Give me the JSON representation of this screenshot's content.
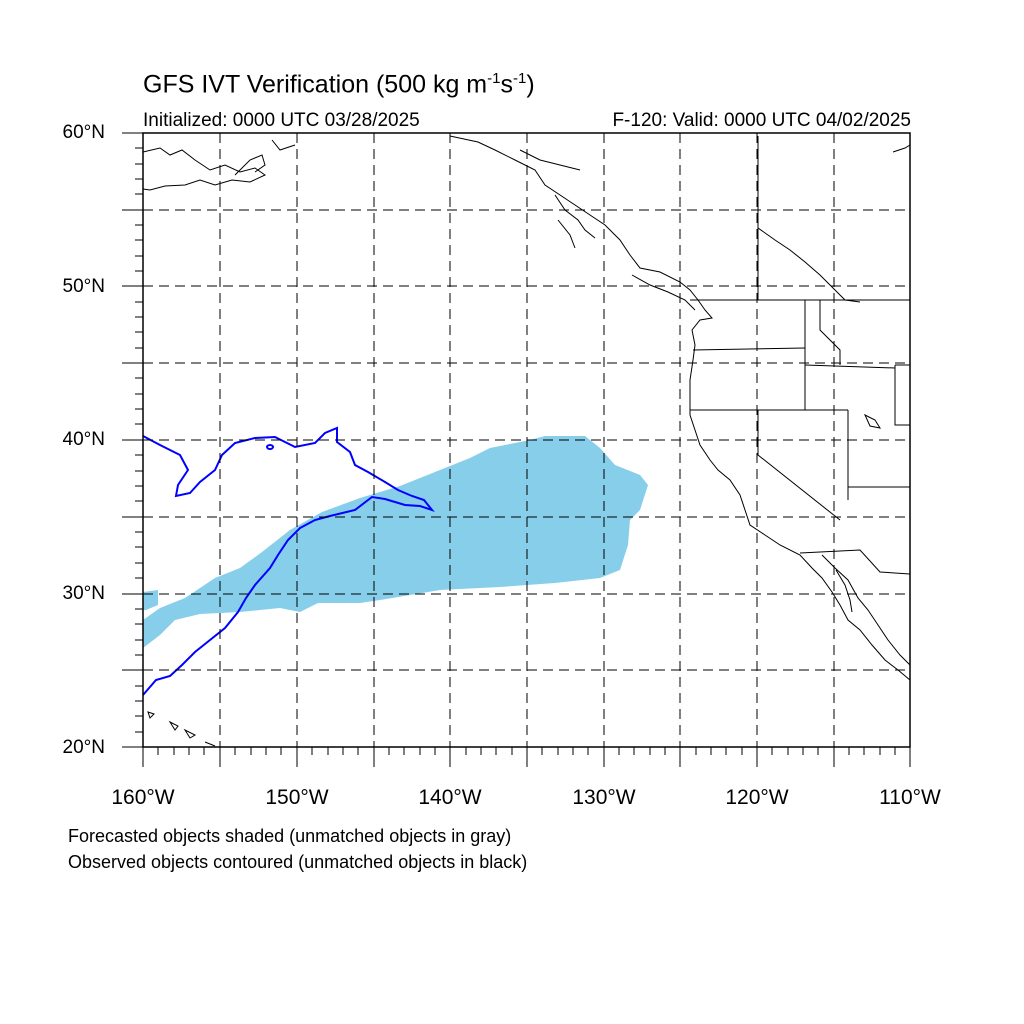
{
  "title": {
    "main": "GFS IVT Verification (500 kg m",
    "sup1": "-1",
    "mid": "s",
    "sup2": "-1",
    "end": ")"
  },
  "initialized": "Initialized: 0000 UTC 03/28/2025",
  "valid": "F-120: Valid: 0000 UTC 04/02/2025",
  "lat_labels": [
    "60°N",
    "50°N",
    "40°N",
    "30°N",
    "20°N"
  ],
  "lon_labels": [
    "160°W",
    "150°W",
    "140°W",
    "130°W",
    "120°W",
    "110°W"
  ],
  "captions": [
    "Forecasted objects shaded (unmatched objects in gray)",
    "Observed objects contoured (unmatched objects in black)"
  ],
  "colors": {
    "forecast_fill": "#87ceeb",
    "observed_contour": "#0000ff",
    "coastline": "#000000",
    "grid": "#000000"
  },
  "map_extent": {
    "lon": [
      -160,
      -110
    ],
    "lat": [
      20,
      60
    ]
  }
}
